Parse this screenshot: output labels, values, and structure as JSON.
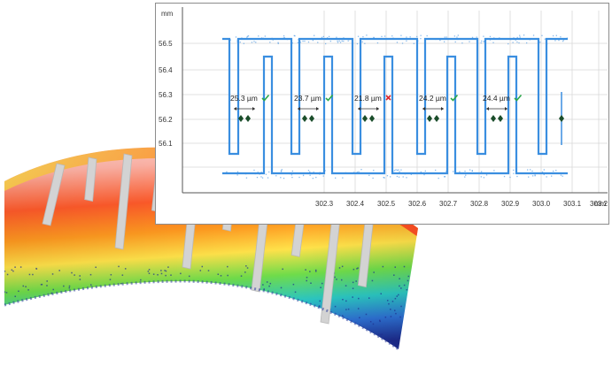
{
  "profile_chart": {
    "y_unit": "mm",
    "x_unit": "mm",
    "y_ticks": [
      "56.5",
      "56.4",
      "56.3",
      "56.2",
      "56.1"
    ],
    "x_ticks": [
      "302.3",
      "302.4",
      "302.5",
      "302.6",
      "302.7",
      "302.8",
      "302.9",
      "303.0",
      "303.1",
      "303.2"
    ],
    "colors": {
      "profile": "#3a8ee0",
      "marker": "#1a4d2a",
      "pass": "#2ca84a",
      "fail": "#d9272e",
      "grid": "#d8d8d8"
    }
  },
  "measurements": [
    {
      "value": "25.3 µm",
      "status": "pass",
      "status_icon": "check-icon"
    },
    {
      "value": "23.7 µm",
      "status": "pass",
      "status_icon": "check-icon"
    },
    {
      "value": "21.8 µm",
      "status": "fail",
      "status_icon": "cross-icon"
    },
    {
      "value": "24.2 µm",
      "status": "pass",
      "status_icon": "check-icon"
    },
    {
      "value": "24.4 µm",
      "status": "pass",
      "status_icon": "check-icon"
    }
  ],
  "scan_render": {
    "description_colors": [
      "#ff3b1f",
      "#ffd24a",
      "#4fd85a",
      "#2a7fd6",
      "#25309a"
    ],
    "slot_color": "#d3d3d3"
  }
}
